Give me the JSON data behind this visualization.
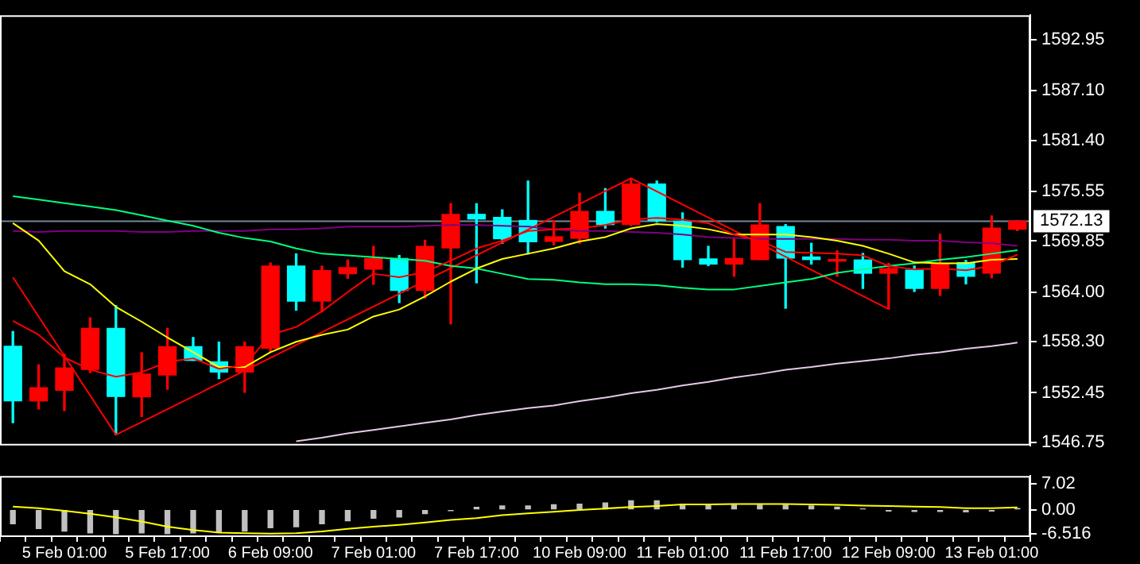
{
  "chart_data": [
    {
      "type": "candlestick",
      "tick_labels": "y",
      "categories": [
        null,
        null,
        null,
        null,
        null,
        null,
        null,
        null,
        null,
        null,
        null,
        null,
        null,
        null,
        null,
        null,
        null,
        null,
        null,
        null,
        null,
        null,
        null,
        null,
        null,
        null,
        null,
        null,
        null,
        null,
        null,
        null,
        null,
        null,
        null,
        null,
        null,
        null,
        null,
        null
      ],
      "ohlc": [
        [
          1557.79,
          1559.48,
          1549.03,
          1551.52
        ],
        [
          1551.52,
          1555.65,
          1550.59,
          1553.03
        ],
        [
          1552.74,
          1556.87,
          1550.42,
          1555.3
        ],
        [
          1555.13,
          1561.05,
          1554.78,
          1559.83
        ],
        [
          1559.83,
          1562.45,
          1547.63,
          1552.04
        ],
        [
          1551.99,
          1557.04,
          1549.72,
          1554.6
        ],
        [
          1554.48,
          1559.83,
          1552.86,
          1557.74
        ],
        [
          1557.74,
          1558.79,
          1556.17,
          1556.17
        ],
        [
          1556.0,
          1558.26,
          1554.08,
          1554.83
        ],
        [
          1554.83,
          1558.26,
          1552.51,
          1557.74
        ],
        [
          1557.57,
          1567.33,
          1557.22,
          1566.98
        ],
        [
          1566.98,
          1568.37,
          1561.92,
          1562.97
        ],
        [
          1562.97,
          1566.98,
          1561.75,
          1566.46
        ],
        [
          1566.11,
          1567.68,
          1565.58,
          1566.8
        ],
        [
          1566.63,
          1569.24,
          1564.89,
          1567.85
        ],
        [
          1567.85,
          1568.2,
          1562.8,
          1564.19
        ],
        [
          1564.19,
          1569.94,
          1563.32,
          1569.24
        ],
        [
          1569.07,
          1574.13,
          1560.36,
          1572.91
        ],
        [
          1572.91,
          1574.13,
          1565.06,
          1572.38
        ],
        [
          1572.56,
          1573.43,
          1569.59,
          1570.12
        ],
        [
          1572.21,
          1576.74,
          1568.37,
          1569.77
        ],
        [
          1569.82,
          1572.21,
          1569.42,
          1570.34
        ],
        [
          1570.17,
          1575.35,
          1569.59,
          1573.25
        ],
        [
          1573.25,
          1575.87,
          1571.34,
          1571.74
        ],
        [
          1571.74,
          1577.04,
          1571.63,
          1576.39
        ],
        [
          1576.39,
          1576.74,
          1572.03,
          1572.21
        ],
        [
          1572.09,
          1573.08,
          1566.86,
          1567.73
        ],
        [
          1567.8,
          1569.24,
          1567.03,
          1567.21
        ],
        [
          1567.21,
          1570.17,
          1565.81,
          1567.85
        ],
        [
          1567.73,
          1574.13,
          1567.73,
          1571.69
        ],
        [
          1571.51,
          1571.74,
          1562.15,
          1567.9
        ],
        [
          1568.02,
          1569.59,
          1567.21,
          1567.73
        ],
        [
          1567.55,
          1568.72,
          1565.81,
          1567.73
        ],
        [
          1567.68,
          1568.43,
          1564.42,
          1566.16
        ],
        [
          1566.16,
          1567.28,
          1562.05,
          1566.68
        ],
        [
          1566.51,
          1566.98,
          1564.07,
          1564.42
        ],
        [
          1564.42,
          1570.64,
          1563.62,
          1567.28
        ],
        [
          1567.38,
          1567.62,
          1564.94,
          1565.81
        ],
        [
          1566.16,
          1572.73,
          1565.64,
          1571.34
        ],
        [
          1571.21,
          1572.21,
          1571.04,
          1572.13
        ]
      ],
      "colors": [
        "#00ffff",
        "#ff0000",
        "#ff0000",
        "#ff0000",
        "#00ffff",
        "#ff0000",
        "#ff0000",
        "#00ffff",
        "#00ffff",
        "#ff0000",
        "#ff0000",
        "#00ffff",
        "#ff0000",
        "#ff0000",
        "#ff0000",
        "#00ffff",
        "#ff0000",
        "#ff0000",
        "#00ffff",
        "#00ffff",
        "#00ffff",
        "#ff0000",
        "#ff0000",
        "#00ffff",
        "#ff0000",
        "#00ffff",
        "#00ffff",
        "#00ffff",
        "#ff0000",
        "#ff0000",
        "#00ffff",
        "#00ffff",
        "#ff0000",
        "#00ffff",
        "#ff0000",
        "#00ffff",
        "#ff0000",
        "#00ffff",
        "#ff0000",
        "#ff0000"
      ],
      "series": [
        {
          "type": "line",
          "color": "#ff0000",
          "values": [
            1560.7,
            1559.1,
            1556.5,
            1555.1,
            1554.3,
            1554.8,
            1556.0,
            1556.4,
            1555.2,
            1555.6,
            1559.1,
            1560.0,
            1561.8,
            1564.0,
            1566.1,
            1565.7,
            1566.3,
            1567.6,
            1569.0,
            1569.9,
            1571.0,
            1571.2,
            1571.3,
            1571.7,
            1572.3,
            1572.5,
            1572.3,
            1571.9,
            1570.6,
            1569.9,
            1568.6,
            1568.5,
            1568.4,
            1568.2,
            1567.0,
            1566.6,
            1566.7,
            1566.5,
            1567.0,
            1568.3
          ]
        },
        {
          "type": "line",
          "color": "#ffff00",
          "values": [
            1571.9,
            1569.9,
            1566.4,
            1564.9,
            1562.3,
            1560.6,
            1558.8,
            1557.1,
            1555.4,
            1555.4,
            1557.1,
            1558.3,
            1559.1,
            1559.7,
            1561.2,
            1562.0,
            1563.5,
            1565.2,
            1566.7,
            1567.8,
            1568.4,
            1569.0,
            1569.8,
            1570.3,
            1571.3,
            1571.8,
            1571.6,
            1571.2,
            1570.6,
            1570.6,
            1570.6,
            1570.3,
            1569.9,
            1569.3,
            1568.4,
            1567.4,
            1567.3,
            1567.3,
            1567.7,
            1567.8
          ]
        },
        {
          "type": "line",
          "color": "#00ff7f",
          "values": [
            1575.0,
            1574.6,
            1574.2,
            1573.8,
            1573.4,
            1572.8,
            1572.2,
            1571.6,
            1570.8,
            1570.2,
            1569.8,
            1569.0,
            1568.4,
            1568.2,
            1568.0,
            1567.8,
            1567.6,
            1567.0,
            1566.7,
            1566.1,
            1565.5,
            1565.4,
            1565.1,
            1564.9,
            1564.9,
            1564.8,
            1564.5,
            1564.3,
            1564.3,
            1564.7,
            1565.1,
            1565.5,
            1566.2,
            1566.6,
            1567.0,
            1567.3,
            1567.7,
            1568.0,
            1568.4,
            1568.8
          ]
        },
        {
          "type": "line",
          "color": "#800080",
          "values": [
            1571.0,
            1570.9,
            1571.0,
            1571.0,
            1571.0,
            1570.9,
            1570.9,
            1571.0,
            1571.0,
            1571.0,
            1571.2,
            1571.2,
            1571.3,
            1571.5,
            1571.5,
            1571.5,
            1571.6,
            1571.7,
            1571.7,
            1571.6,
            1571.5,
            1571.2,
            1571.0,
            1571.0,
            1570.9,
            1570.8,
            1570.6,
            1570.3,
            1570.2,
            1570.1,
            1570.1,
            1570.1,
            1570.1,
            1570.0,
            1570.0,
            1569.9,
            1569.9,
            1569.7,
            1569.6,
            1569.3
          ]
        },
        {
          "type": "line",
          "color": "#e6c8e6",
          "values": [
            null,
            null,
            null,
            null,
            null,
            null,
            null,
            null,
            null,
            null,
            null,
            1546.9,
            1547.3,
            1547.8,
            1548.2,
            1548.6,
            1549.0,
            1549.4,
            1549.9,
            1550.3,
            1550.7,
            1551.0,
            1551.5,
            1551.9,
            1552.4,
            1552.8,
            1553.3,
            1553.7,
            1554.2,
            1554.6,
            1555.1,
            1555.4,
            1555.8,
            1556.1,
            1556.4,
            1556.8,
            1557.1,
            1557.5,
            1557.8,
            1558.2
          ]
        },
        {
          "type": "line",
          "color": "#ff0000",
          "values": [
            1565.7,
            null,
            null,
            null,
            1547.63,
            null,
            null,
            null,
            null,
            null,
            null,
            null,
            null,
            null,
            null,
            null,
            null,
            null,
            null,
            null,
            null,
            null,
            null,
            null,
            1577.04,
            null,
            null,
            null,
            null,
            null,
            null,
            null,
            null,
            null,
            1562.05,
            null,
            null,
            null,
            null,
            null
          ]
        }
      ],
      "ylim": [
        1546.41,
        1595.74
      ],
      "yticks": [
        1592.95,
        {
          "value": 1587.1,
          "label": "1587.10"
        },
        {
          "value": 1581.4,
          "label": "1581.40"
        },
        1575.55,
        1569.85,
        {
          "value": 1564,
          "label": "1564.00"
        },
        {
          "value": 1558.3,
          "label": "1558.30"
        },
        1552.45,
        1546.75
      ],
      "ref_lines": [
        {
          "axis": "y",
          "value": 1572.13,
          "label": "1572.13",
          "color": "#778899"
        }
      ]
    },
    {
      "type": "bar",
      "categories": [
        null,
        null,
        "5 Feb 01:00",
        null,
        null,
        null,
        "5 Feb 17:00",
        null,
        null,
        null,
        "6 Feb 09:00",
        null,
        null,
        null,
        "7 Feb 01:00",
        null,
        null,
        null,
        "7 Feb 17:00",
        null,
        null,
        null,
        "10 Feb 09:00",
        null,
        null,
        null,
        "11 Feb 01:00",
        null,
        null,
        null,
        "11 Feb 17:00",
        null,
        null,
        null,
        "12 Feb 09:00",
        null,
        null,
        null,
        "13 Feb 01:00",
        null
      ],
      "series": [
        {
          "type": "bar",
          "color": "#c0c0c0",
          "values": [
            -3.8,
            -5.1,
            -5.8,
            -6.3,
            -6.5,
            -6.3,
            -6.5,
            -6.3,
            -6.1,
            -5.8,
            -4.9,
            -4.6,
            -3.8,
            -3.0,
            -2.3,
            -2.0,
            -1.1,
            -0.3,
            0.6,
            1.0,
            1.0,
            1.3,
            1.5,
            1.8,
            2.4,
            2.4,
            1.5,
            1.3,
            1.2,
            1.2,
            1.2,
            1.0,
            0.7,
            0.2,
            -0.4,
            -0.5,
            -0.5,
            -0.6,
            -0.4,
            0.3
          ]
        },
        {
          "type": "line",
          "color": "#ffff00",
          "values": [
            0.8,
            0.4,
            -0.3,
            -1.1,
            -2.1,
            -3.2,
            -4.6,
            -5.5,
            -6.2,
            -6.4,
            -6.5,
            -6.4,
            -5.9,
            -5.2,
            -4.6,
            -4.1,
            -3.5,
            -2.8,
            -2.3,
            -1.5,
            -1.0,
            -0.6,
            -0.1,
            0.3,
            0.7,
            1.0,
            1.4,
            1.4,
            1.5,
            1.5,
            1.5,
            1.4,
            1.3,
            1.1,
            1.0,
            0.8,
            0.7,
            0.4,
            0.4,
            0.6
          ]
        }
      ],
      "ylim": [
        -7.4,
        9.1
      ],
      "yticks": [
        7.02,
        {
          "value": 0,
          "label": "0.00"
        },
        -6.516
      ]
    }
  ]
}
